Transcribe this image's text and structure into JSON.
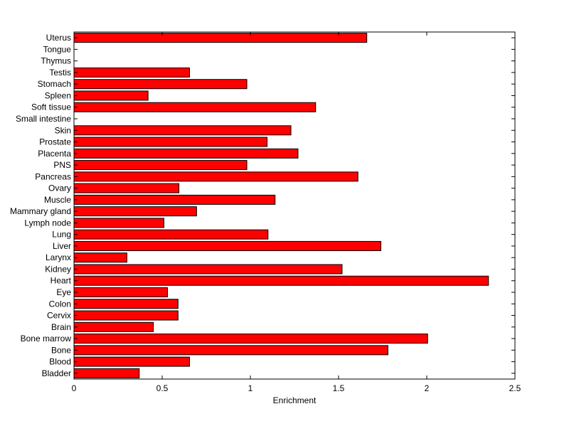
{
  "chart_data": {
    "type": "bar",
    "orientation": "horizontal",
    "title": "",
    "xlabel": "Enrichment",
    "ylabel": "",
    "xlim": [
      0,
      2.5
    ],
    "xticks": [
      0,
      0.5,
      1,
      1.5,
      2,
      2.5
    ],
    "xtick_labels": [
      "0",
      "0.5",
      "1",
      "1.5",
      "2",
      "2.5"
    ],
    "grid": false,
    "legend": "none",
    "bar_color": "#ff0000",
    "edge_color": "#000000",
    "categories": [
      "Uterus",
      "Tongue",
      "Thymus",
      "Testis",
      "Stomach",
      "Spleen",
      "Soft tissue",
      "Small intestine",
      "Skin",
      "Prostate",
      "Placenta",
      "PNS",
      "Pancreas",
      "Ovary",
      "Muscle",
      "Mammary gland",
      "Lymph node",
      "Lung",
      "Liver",
      "Larynx",
      "Kidney",
      "Heart",
      "Eye",
      "Colon",
      "Cervix",
      "Brain",
      "Bone marrow",
      "Bone",
      "Blood",
      "Bladder"
    ],
    "values": [
      1.66,
      0,
      0,
      0.655,
      0.98,
      0.42,
      1.37,
      0,
      1.23,
      1.095,
      1.27,
      0.98,
      1.61,
      0.595,
      1.14,
      0.695,
      0.51,
      1.1,
      1.74,
      0.3,
      1.52,
      2.35,
      0.53,
      0.59,
      0.59,
      0.45,
      2.005,
      1.78,
      0.655,
      0.37
    ]
  }
}
